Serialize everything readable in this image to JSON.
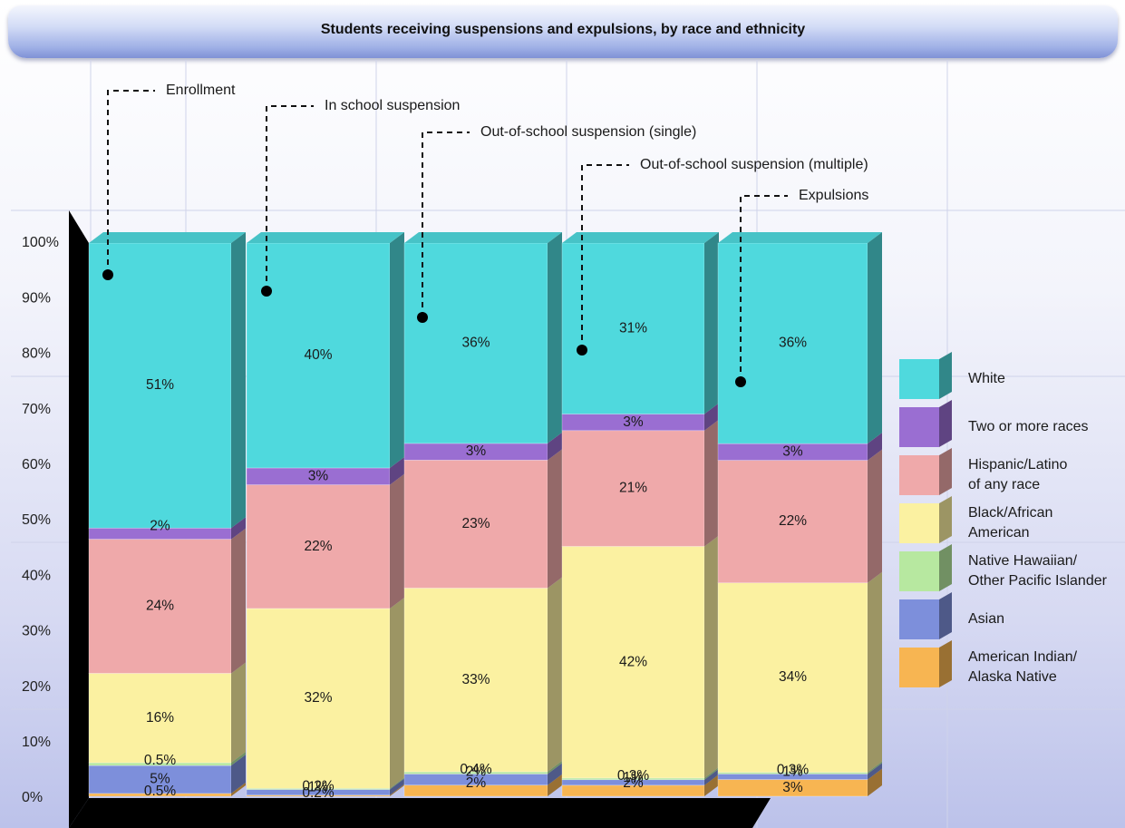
{
  "chart_data": {
    "type": "bar",
    "stacked": true,
    "title": "Students receiving suspensions and expulsions, by race and ethnicity",
    "categories": [
      "Enrollment",
      "In school suspension",
      "Out-of-school suspension (single)",
      "Out-of-school suspension (multiple)",
      "Expulsions"
    ],
    "y_ticks": [
      "0%",
      "10%",
      "20%",
      "30%",
      "40%",
      "50%",
      "60%",
      "70%",
      "80%",
      "90%",
      "100%"
    ],
    "ylim": [
      0,
      100
    ],
    "grid": true,
    "legend_position": "right",
    "series": [
      {
        "name": "American Indian/\nAlaska Native",
        "color": "#f7b552",
        "values": [
          0.5,
          0.2,
          2,
          2,
          3
        ],
        "labels": [
          "0.5%",
          "0.2%",
          "2%",
          "2%",
          "3%"
        ]
      },
      {
        "name": "Asian",
        "color": "#7d8fdb",
        "values": [
          5,
          1,
          2,
          1,
          1
        ],
        "labels": [
          "5%",
          "1%",
          "2%",
          "1%",
          "1%"
        ]
      },
      {
        "name": "Native Hawaiian/\nOther Pacific Islander",
        "color": "#b7e8a0",
        "values": [
          0.5,
          0.2,
          0.4,
          0.3,
          0.3
        ],
        "labels": [
          "0.5%",
          "0.2%",
          "0.4%",
          "0.3%",
          "0.3%"
        ]
      },
      {
        "name": "Black/African\nAmerican",
        "color": "#fbf1a1",
        "values": [
          16,
          32,
          33,
          42,
          34
        ],
        "labels": [
          "16%",
          "32%",
          "33%",
          "42%",
          "34%"
        ]
      },
      {
        "name": "Hispanic/Latino\nof any race",
        "color": "#efa9aa",
        "values": [
          24,
          22,
          23,
          21,
          22
        ],
        "labels": [
          "24%",
          "22%",
          "23%",
          "21%",
          "22%"
        ]
      },
      {
        "name": "Two or more races",
        "color": "#9a6ed2",
        "values": [
          2,
          3,
          3,
          3,
          3
        ],
        "labels": [
          "2%",
          "3%",
          "3%",
          "3%",
          "3%"
        ]
      },
      {
        "name": "White",
        "color": "#4fd9dd",
        "values": [
          51,
          40,
          36,
          31,
          36
        ],
        "labels": [
          "51%",
          "40%",
          "36%",
          "31%",
          "36%"
        ]
      }
    ]
  }
}
